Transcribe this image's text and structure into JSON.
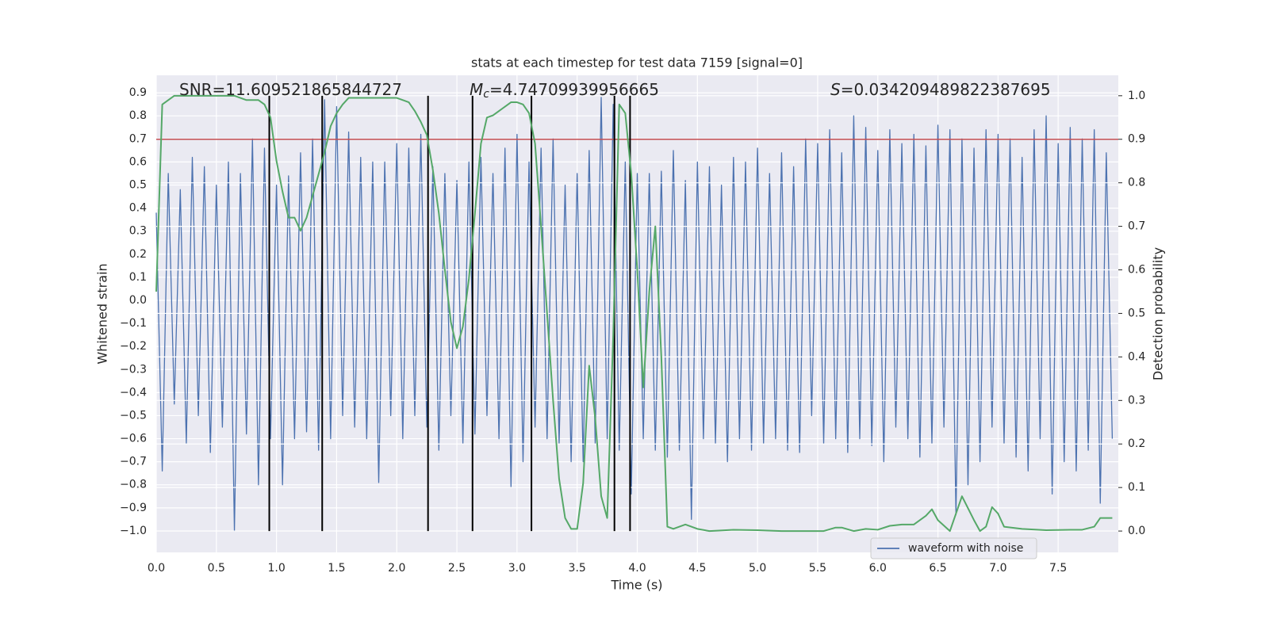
{
  "chart_data": {
    "type": "line",
    "title": "stats at each timestep for test data 7159 [signal=0]",
    "xlabel": "Time (s)",
    "ylabel": "Whitened strain",
    "y2label": "Detection probability",
    "xlim": [
      0,
      8.0
    ],
    "ylim": [
      -1.093,
      0.976
    ],
    "y2lim": [
      -0.049,
      1.047
    ],
    "xticks": [
      {
        "value": 0,
        "label": "0.0"
      },
      0.5,
      {
        "value": 1,
        "label": "1.0"
      },
      1.5,
      {
        "value": 2,
        "label": "2.0"
      },
      2.5,
      {
        "value": 3,
        "label": "3.0"
      },
      3.5,
      {
        "value": 4,
        "label": "4.0"
      },
      4.5,
      {
        "value": 5,
        "label": "5.0"
      },
      5.5,
      {
        "value": 6,
        "label": "6.0"
      },
      6.5,
      {
        "value": 7,
        "label": "7.0"
      },
      7.5
    ],
    "yticks": [
      {
        "value": -1,
        "label": "−1.0"
      },
      {
        "value": -0.9,
        "label": "−0.9"
      },
      {
        "value": -0.8,
        "label": "−0.8"
      },
      {
        "value": -0.7,
        "label": "−0.7"
      },
      {
        "value": -0.6,
        "label": "−0.6"
      },
      {
        "value": -0.5,
        "label": "−0.5"
      },
      {
        "value": -0.4,
        "label": "−0.4"
      },
      {
        "value": -0.3,
        "label": "−0.3"
      },
      {
        "value": -0.2,
        "label": "−0.2"
      },
      {
        "value": -0.1,
        "label": "−0.1"
      },
      {
        "value": 0,
        "label": "0.0"
      },
      0.1,
      0.2,
      0.3,
      0.4,
      0.5,
      0.6,
      0.7,
      0.8,
      0.9
    ],
    "y2ticks": [
      {
        "value": 0,
        "label": "0.0"
      },
      0.1,
      0.2,
      0.3,
      0.4,
      0.5,
      0.6,
      0.7,
      0.8,
      0.9,
      {
        "value": 1,
        "label": "1.0"
      }
    ],
    "grid": true,
    "background": "#eaeaf2",
    "legend": "lower right",
    "series": [
      {
        "name": "waveform with noise",
        "color": "#4c72b0",
        "x": [
          0,
          0.05,
          0.1,
          0.15,
          0.2,
          0.25,
          0.3,
          0.35,
          0.4,
          0.45,
          0.5,
          0.55,
          0.6,
          0.65,
          0.7,
          0.75,
          0.8,
          0.85,
          0.9,
          0.95,
          1,
          1.05,
          1.1,
          1.15,
          1.2,
          1.25,
          1.3,
          1.35,
          1.4,
          1.45,
          1.5,
          1.55,
          1.6,
          1.65,
          1.7,
          1.75,
          1.8,
          1.85,
          1.9,
          1.95,
          2,
          2.05,
          2.1,
          2.15,
          2.2,
          2.25,
          2.3,
          2.35,
          2.4,
          2.45,
          2.5,
          2.55,
          2.6,
          2.65,
          2.7,
          2.75,
          2.8,
          2.85,
          2.9,
          2.95,
          3,
          3.05,
          3.1,
          3.15,
          3.2,
          3.25,
          3.3,
          3.35,
          3.4,
          3.45,
          3.5,
          3.55,
          3.6,
          3.65,
          3.7,
          3.75,
          3.8,
          3.85,
          3.9,
          3.95,
          4,
          4.05,
          4.1,
          4.15,
          4.2,
          4.25,
          4.3,
          4.35,
          4.4,
          4.45,
          4.5,
          4.55,
          4.6,
          4.65,
          4.7,
          4.75,
          4.8,
          4.85,
          4.9,
          4.95,
          5,
          5.05,
          5.1,
          5.15,
          5.2,
          5.25,
          5.3,
          5.35,
          5.4,
          5.45,
          5.5,
          5.55,
          5.6,
          5.65,
          5.7,
          5.75,
          5.8,
          5.85,
          5.9,
          5.95,
          6,
          6.05,
          6.1,
          6.15,
          6.2,
          6.25,
          6.3,
          6.35,
          6.4,
          6.45,
          6.5,
          6.55,
          6.6,
          6.65,
          6.7,
          6.75,
          6.8,
          6.85,
          6.9,
          6.95,
          7,
          7.05,
          7.1,
          7.15,
          7.2,
          7.25,
          7.3,
          7.35,
          7.4,
          7.45,
          7.5,
          7.55,
          7.6,
          7.65,
          7.7,
          7.75,
          7.8,
          7.85,
          7.9,
          7.95
        ],
        "values": [
          0.38,
          -0.74,
          0.55,
          -0.45,
          0.48,
          -0.62,
          0.62,
          -0.5,
          0.58,
          -0.66,
          0.5,
          -0.55,
          0.6,
          -1.0,
          0.55,
          -0.58,
          0.7,
          -0.8,
          0.66,
          -0.6,
          0.5,
          -0.8,
          0.54,
          -0.6,
          0.64,
          -0.57,
          0.7,
          -0.65,
          0.87,
          -0.6,
          0.84,
          -0.5,
          0.73,
          -0.55,
          0.62,
          -0.6,
          0.6,
          -0.79,
          0.6,
          -0.5,
          0.68,
          -0.6,
          0.66,
          -0.5,
          0.72,
          -0.55,
          0.58,
          -0.65,
          0.55,
          -0.5,
          0.52,
          -0.62,
          0.6,
          -0.58,
          0.62,
          -0.5,
          0.55,
          -0.6,
          0.66,
          -0.81,
          0.72,
          -0.7,
          0.6,
          -0.55,
          0.66,
          -0.6,
          0.7,
          -0.62,
          0.5,
          -0.7,
          0.55,
          -0.7,
          0.65,
          -0.62,
          0.88,
          -0.6,
          0.85,
          -0.65,
          0.6,
          -0.84,
          0.55,
          -0.6,
          0.55,
          -0.65,
          0.56,
          -0.68,
          0.65,
          -0.65,
          0.52,
          -0.95,
          0.6,
          -0.6,
          0.58,
          -0.62,
          0.5,
          -0.7,
          0.62,
          -0.6,
          0.6,
          -0.65,
          0.66,
          -0.62,
          0.55,
          -0.6,
          0.64,
          -0.65,
          0.58,
          -0.66,
          0.7,
          -0.5,
          0.68,
          -0.62,
          0.74,
          -0.6,
          0.64,
          -0.66,
          0.8,
          -0.6,
          0.75,
          -0.63,
          0.65,
          -0.7,
          0.74,
          -0.55,
          0.68,
          -0.6,
          0.72,
          -0.68,
          0.67,
          -0.62,
          0.76,
          -0.55,
          0.74,
          -0.93,
          0.7,
          -0.8,
          0.66,
          -0.7,
          0.74,
          -0.55,
          0.72,
          -0.62,
          0.7,
          -0.68,
          0.62,
          -0.74,
          0.74,
          -0.6,
          0.8,
          -0.84,
          0.68,
          -0.7,
          0.75,
          -0.74,
          0.7,
          -0.65,
          0.74,
          -0.88,
          0.64,
          -0.6
        ]
      },
      {
        "color": "#55a868",
        "axis": "y2",
        "x": [
          0,
          0.05,
          0.1,
          0.15,
          0.3,
          0.5,
          0.65,
          0.75,
          0.85,
          0.9,
          0.95,
          1,
          1.05,
          1.1,
          1.15,
          1.2,
          1.25,
          1.3,
          1.35,
          1.4,
          1.45,
          1.5,
          1.55,
          1.6,
          1.8,
          2,
          2.1,
          2.15,
          2.2,
          2.25,
          2.3,
          2.35,
          2.4,
          2.45,
          2.5,
          2.55,
          2.6,
          2.65,
          2.7,
          2.75,
          2.8,
          2.85,
          2.9,
          2.95,
          3,
          3.05,
          3.1,
          3.15,
          3.2,
          3.25,
          3.3,
          3.35,
          3.4,
          3.45,
          3.5,
          3.55,
          3.6,
          3.65,
          3.7,
          3.75,
          3.8,
          3.85,
          3.9,
          3.95,
          4,
          4.05,
          4.1,
          4.15,
          4.2,
          4.25,
          4.3,
          4.4,
          4.5,
          4.6,
          4.8,
          5,
          5.2,
          5.4,
          5.55,
          5.65,
          5.7,
          5.8,
          5.9,
          6,
          6.1,
          6.2,
          6.3,
          6.4,
          6.45,
          6.5,
          6.6,
          6.7,
          6.8,
          6.85,
          6.9,
          6.95,
          7,
          7.05,
          7.2,
          7.4,
          7.6,
          7.7,
          7.8,
          7.85,
          7.95
        ],
        "values": [
          0.55,
          0.98,
          0.99,
          1.0,
          1.0,
          1.0,
          1.0,
          0.99,
          0.99,
          0.98,
          0.95,
          0.85,
          0.78,
          0.72,
          0.72,
          0.69,
          0.72,
          0.77,
          0.82,
          0.87,
          0.93,
          0.96,
          0.98,
          0.995,
          0.995,
          0.995,
          0.985,
          0.965,
          0.94,
          0.91,
          0.83,
          0.73,
          0.6,
          0.48,
          0.42,
          0.47,
          0.58,
          0.73,
          0.89,
          0.95,
          0.955,
          0.965,
          0.975,
          0.985,
          0.985,
          0.98,
          0.96,
          0.89,
          0.7,
          0.5,
          0.3,
          0.12,
          0.03,
          0.005,
          0.005,
          0.11,
          0.38,
          0.26,
          0.08,
          0.03,
          0.45,
          0.98,
          0.96,
          0.82,
          0.6,
          0.33,
          0.55,
          0.7,
          0.4,
          0.01,
          0.005,
          0.015,
          0.005,
          0.0,
          0.003,
          0.002,
          0.0,
          0.0,
          0.0,
          0.008,
          0.008,
          0.0,
          0.005,
          0.003,
          0.012,
          0.015,
          0.015,
          0.035,
          0.05,
          0.025,
          0.0,
          0.08,
          0.025,
          0.0,
          0.01,
          0.055,
          0.04,
          0.01,
          0.005,
          0.002,
          0.003,
          0.003,
          0.01,
          0.03,
          0.03
        ]
      }
    ],
    "vlines": {
      "color": "#000000",
      "axis": "y2",
      "range": [
        0,
        1
      ],
      "x": [
        0.94,
        1.38,
        2.26,
        2.63,
        3.12,
        3.81,
        3.94
      ]
    },
    "hline": {
      "y": 0.9,
      "axis": "y2",
      "color": "#c44e52"
    },
    "annotations": [
      {
        "text": "SNR=11.609521865844727"
      },
      {
        "symbol": "M",
        "subscript": "c",
        "text": "=4.74709939956665"
      },
      {
        "symbol": "S",
        "text": "=0.034209489822387695"
      }
    ]
  }
}
